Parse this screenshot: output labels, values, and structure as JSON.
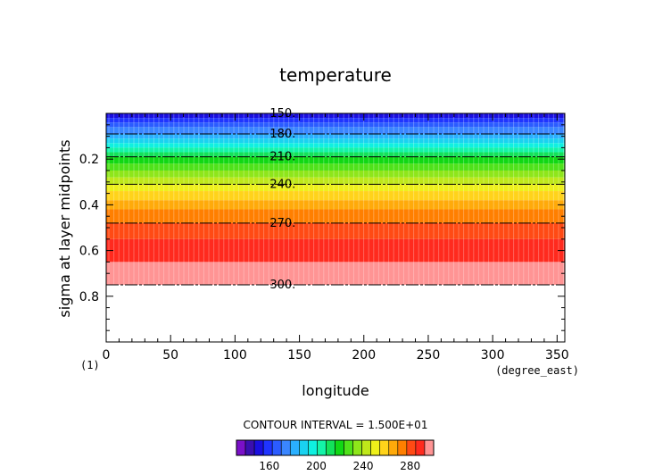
{
  "chart_data": {
    "type": "heatmap",
    "title": "temperature",
    "xlabel": "longitude",
    "ylabel": "sigma at layer midpoints",
    "x_units": "(degree_east)",
    "panel_label": "(1)",
    "xlim": [
      0,
      356
    ],
    "ylim": [
      1.0,
      0.0
    ],
    "x_ticks": [
      0,
      50,
      100,
      150,
      200,
      250,
      300,
      350
    ],
    "x_tick_labels": [
      "0",
      "50",
      "100",
      "150",
      "200",
      "250",
      "300",
      "350"
    ],
    "y_ticks": [
      0.2,
      0.4,
      0.6,
      0.8
    ],
    "y_tick_labels": [
      "0.2",
      "0.4",
      "0.6",
      "0.8"
    ],
    "data_sigma_range": [
      0.0,
      0.75
    ],
    "contour_interval_text": "CONTOUR INTERVAL = 1.500E+01",
    "contours": [
      {
        "label": "150.",
        "value": 150,
        "sigma": 0.0
      },
      {
        "label": "180.",
        "value": 180,
        "sigma": 0.09
      },
      {
        "label": "210.",
        "value": 210,
        "sigma": 0.19
      },
      {
        "label": "240.",
        "value": 240,
        "sigma": 0.31
      },
      {
        "label": "270.",
        "value": 270,
        "sigma": 0.48
      },
      {
        "label": "300.",
        "value": 300,
        "sigma": 0.75
      }
    ],
    "bands": [
      {
        "sigma_top": 0.0,
        "sigma_bottom": 0.02,
        "color": "#1a0fe0"
      },
      {
        "sigma_top": 0.02,
        "sigma_bottom": 0.04,
        "color": "#1f34ff"
      },
      {
        "sigma_top": 0.04,
        "sigma_bottom": 0.06,
        "color": "#2b5cff"
      },
      {
        "sigma_top": 0.06,
        "sigma_bottom": 0.09,
        "color": "#3a86ff"
      },
      {
        "sigma_top": 0.09,
        "sigma_bottom": 0.11,
        "color": "#2ab0ff"
      },
      {
        "sigma_top": 0.11,
        "sigma_bottom": 0.13,
        "color": "#19d2f0"
      },
      {
        "sigma_top": 0.13,
        "sigma_bottom": 0.15,
        "color": "#0ff0e0"
      },
      {
        "sigma_top": 0.15,
        "sigma_bottom": 0.17,
        "color": "#14f4a8"
      },
      {
        "sigma_top": 0.17,
        "sigma_bottom": 0.19,
        "color": "#13e25a"
      },
      {
        "sigma_top": 0.19,
        "sigma_bottom": 0.22,
        "color": "#10d814"
      },
      {
        "sigma_top": 0.22,
        "sigma_bottom": 0.25,
        "color": "#4fe21a"
      },
      {
        "sigma_top": 0.25,
        "sigma_bottom": 0.28,
        "color": "#8ee61a"
      },
      {
        "sigma_top": 0.28,
        "sigma_bottom": 0.31,
        "color": "#bfe81a"
      },
      {
        "sigma_top": 0.31,
        "sigma_bottom": 0.34,
        "color": "#eef01a"
      },
      {
        "sigma_top": 0.34,
        "sigma_bottom": 0.38,
        "color": "#ffd31a"
      },
      {
        "sigma_top": 0.38,
        "sigma_bottom": 0.42,
        "color": "#ffaa0a"
      },
      {
        "sigma_top": 0.42,
        "sigma_bottom": 0.48,
        "color": "#ff7f00"
      },
      {
        "sigma_top": 0.48,
        "sigma_bottom": 0.55,
        "color": "#ff4a14"
      },
      {
        "sigma_top": 0.55,
        "sigma_bottom": 0.65,
        "color": "#ff2a1e"
      },
      {
        "sigma_top": 0.65,
        "sigma_bottom": 0.75,
        "color": "#ff9494"
      }
    ],
    "colorbar": {
      "colors": [
        "#7a10c8",
        "#3a0fb0",
        "#1a0fe0",
        "#1f34ff",
        "#2b5cff",
        "#3a86ff",
        "#2ab0ff",
        "#19d2f0",
        "#0ff0e0",
        "#14f4a8",
        "#13e25a",
        "#10d814",
        "#4fe21a",
        "#8ee61a",
        "#bfe81a",
        "#eef01a",
        "#ffd31a",
        "#ffaa0a",
        "#ff7f00",
        "#ff4a14",
        "#ff2a1e",
        "#ff9494"
      ],
      "range": [
        132,
        300
      ],
      "ticks": [
        160,
        200,
        240,
        280
      ],
      "tick_labels": [
        "160",
        "200",
        "240",
        "280"
      ]
    }
  }
}
